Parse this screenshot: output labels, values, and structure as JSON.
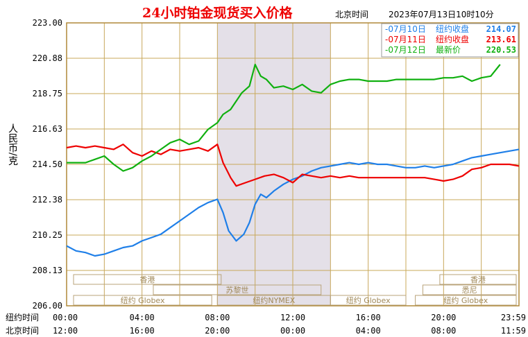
{
  "chart_data": {
    "type": "line",
    "title": "24小时铂金现货买入价格",
    "subtitle_label": "北京时间",
    "timestamp": "2023年07月13日10时10分",
    "ylabel": "人民币/克",
    "ylim": [
      206.0,
      223.0
    ],
    "y_ticks": [
      "223.00",
      "220.88",
      "218.75",
      "216.63",
      "214.50",
      "212.38",
      "210.25",
      "208.13",
      "206.00"
    ],
    "x_tick_labels_ny": [
      "00:00",
      "04:00",
      "08:00",
      "12:00",
      "16:00",
      "20:00",
      "23:59"
    ],
    "x_tick_labels_bj": [
      "12:00",
      "16:00",
      "20:00",
      "00:00",
      "04:00",
      "08:00",
      "11:59"
    ],
    "x_row_label_ny": "纽约时间",
    "x_row_label_bj": "北京时间",
    "xlim_hours": [
      0,
      24
    ],
    "grid": true,
    "legend_position": "top-right",
    "legend": [
      {
        "date": "07月10日",
        "label": "纽约收盘",
        "value": "214.07",
        "color": "#1f7fe8"
      },
      {
        "date": "07月11日",
        "label": "纽约收盘",
        "value": "213.61",
        "color": "#ee0000"
      },
      {
        "date": "07月12日",
        "label": "最新价",
        "value": "220.53",
        "color": "#10b010"
      }
    ],
    "shaded_session": {
      "label": "纽约NYMEX",
      "x_start_hours": 8,
      "x_end_hours": 14
    },
    "sessions": [
      {
        "label": "香港",
        "x_start_hours": 0,
        "x_end_hours": 8.2,
        "row": 1
      },
      {
        "label": "苏黎世",
        "x_start_hours": 4.6,
        "x_end_hours": 13.5,
        "row": 2
      },
      {
        "label": "纽约 Globex",
        "x_start_hours": 0,
        "x_end_hours": 7.7,
        "row": 3
      },
      {
        "label": "纽约NYMEX",
        "x_start_hours": 8,
        "x_end_hours": 14,
        "row": 3
      },
      {
        "label": "纽约 Globex",
        "x_start_hours": 14,
        "x_end_hours": 18,
        "row": 3
      },
      {
        "label": "香港",
        "x_start_hours": 19.8,
        "x_end_hours": 24,
        "row": 1
      },
      {
        "label": "悉尼",
        "x_start_hours": 18.9,
        "x_end_hours": 24,
        "row": 2
      },
      {
        "label": "纽约 Globex",
        "x_start_hours": 18.5,
        "x_end_hours": 24,
        "row": 3
      }
    ],
    "series": [
      {
        "name": "07月10日",
        "color": "#1f7fe8",
        "points": [
          [
            0,
            209.6
          ],
          [
            0.5,
            209.3
          ],
          [
            1,
            209.2
          ],
          [
            1.5,
            209.0
          ],
          [
            2,
            209.1
          ],
          [
            2.5,
            209.3
          ],
          [
            3,
            209.5
          ],
          [
            3.5,
            209.6
          ],
          [
            4,
            209.9
          ],
          [
            4.5,
            210.1
          ],
          [
            5,
            210.3
          ],
          [
            5.5,
            210.7
          ],
          [
            6,
            211.1
          ],
          [
            6.5,
            211.5
          ],
          [
            7,
            211.9
          ],
          [
            7.5,
            212.2
          ],
          [
            8,
            212.4
          ],
          [
            8.3,
            211.6
          ],
          [
            8.6,
            210.5
          ],
          [
            9,
            209.9
          ],
          [
            9.4,
            210.3
          ],
          [
            9.7,
            211.0
          ],
          [
            10,
            212.1
          ],
          [
            10.3,
            212.7
          ],
          [
            10.6,
            212.5
          ],
          [
            11,
            212.9
          ],
          [
            11.5,
            213.3
          ],
          [
            12,
            213.6
          ],
          [
            12.5,
            213.8
          ],
          [
            13,
            214.1
          ],
          [
            13.5,
            214.3
          ],
          [
            14,
            214.4
          ],
          [
            14.5,
            214.5
          ],
          [
            15,
            214.6
          ],
          [
            15.5,
            214.5
          ],
          [
            16,
            214.6
          ],
          [
            16.5,
            214.5
          ],
          [
            17,
            214.5
          ],
          [
            17.5,
            214.4
          ],
          [
            18,
            214.3
          ],
          [
            18.5,
            214.3
          ],
          [
            19,
            214.4
          ],
          [
            19.5,
            214.3
          ],
          [
            20,
            214.4
          ],
          [
            20.5,
            214.5
          ],
          [
            21,
            214.7
          ],
          [
            21.5,
            214.9
          ],
          [
            22,
            215.0
          ],
          [
            22.5,
            215.1
          ],
          [
            23,
            215.2
          ],
          [
            23.5,
            215.3
          ],
          [
            24,
            215.4
          ]
        ]
      },
      {
        "name": "07月11日",
        "color": "#ee0000",
        "points": [
          [
            0,
            215.5
          ],
          [
            0.5,
            215.6
          ],
          [
            1,
            215.5
          ],
          [
            1.5,
            215.6
          ],
          [
            2,
            215.5
          ],
          [
            2.5,
            215.4
          ],
          [
            3,
            215.7
          ],
          [
            3.5,
            215.2
          ],
          [
            4,
            215.0
          ],
          [
            4.5,
            215.3
          ],
          [
            5,
            215.1
          ],
          [
            5.5,
            215.4
          ],
          [
            6,
            215.3
          ],
          [
            6.5,
            215.4
          ],
          [
            7,
            215.5
          ],
          [
            7.5,
            215.3
          ],
          [
            8,
            215.7
          ],
          [
            8.3,
            214.6
          ],
          [
            8.7,
            213.7
          ],
          [
            9,
            213.2
          ],
          [
            9.5,
            213.4
          ],
          [
            10,
            213.6
          ],
          [
            10.5,
            213.8
          ],
          [
            11,
            213.9
          ],
          [
            11.5,
            213.7
          ],
          [
            12,
            213.4
          ],
          [
            12.5,
            213.9
          ],
          [
            13,
            213.8
          ],
          [
            13.5,
            213.7
          ],
          [
            14,
            213.8
          ],
          [
            14.5,
            213.7
          ],
          [
            15,
            213.8
          ],
          [
            15.5,
            213.7
          ],
          [
            16,
            213.7
          ],
          [
            16.5,
            213.7
          ],
          [
            17,
            213.7
          ],
          [
            17.5,
            213.7
          ],
          [
            18,
            213.7
          ],
          [
            18.5,
            213.7
          ],
          [
            19,
            213.7
          ],
          [
            19.5,
            213.6
          ],
          [
            20,
            213.5
          ],
          [
            20.5,
            213.6
          ],
          [
            21,
            213.8
          ],
          [
            21.5,
            214.2
          ],
          [
            22,
            214.3
          ],
          [
            22.5,
            214.5
          ],
          [
            23,
            214.5
          ],
          [
            23.5,
            214.5
          ],
          [
            24,
            214.4
          ]
        ]
      },
      {
        "name": "07月12日",
        "color": "#10b010",
        "points": [
          [
            0,
            214.6
          ],
          [
            0.5,
            214.6
          ],
          [
            1,
            214.6
          ],
          [
            1.5,
            214.8
          ],
          [
            2,
            215.0
          ],
          [
            2.5,
            214.5
          ],
          [
            3,
            214.1
          ],
          [
            3.5,
            214.3
          ],
          [
            4,
            214.7
          ],
          [
            4.5,
            215.0
          ],
          [
            5,
            215.4
          ],
          [
            5.5,
            215.8
          ],
          [
            6,
            216.0
          ],
          [
            6.5,
            215.7
          ],
          [
            7,
            215.9
          ],
          [
            7.5,
            216.6
          ],
          [
            8,
            217.0
          ],
          [
            8.3,
            217.5
          ],
          [
            8.7,
            217.8
          ],
          [
            9,
            218.3
          ],
          [
            9.3,
            218.8
          ],
          [
            9.7,
            219.2
          ],
          [
            10,
            220.5
          ],
          [
            10.3,
            219.8
          ],
          [
            10.6,
            219.6
          ],
          [
            11,
            219.1
          ],
          [
            11.5,
            219.2
          ],
          [
            12,
            219.0
          ],
          [
            12.5,
            219.3
          ],
          [
            13,
            218.9
          ],
          [
            13.5,
            218.8
          ],
          [
            14,
            219.3
          ],
          [
            14.5,
            219.5
          ],
          [
            15,
            219.6
          ],
          [
            15.5,
            219.6
          ],
          [
            16,
            219.5
          ],
          [
            16.5,
            219.5
          ],
          [
            17,
            219.5
          ],
          [
            17.5,
            219.6
          ],
          [
            18,
            219.6
          ],
          [
            18.5,
            219.6
          ],
          [
            19,
            219.6
          ],
          [
            19.5,
            219.6
          ],
          [
            20,
            219.7
          ],
          [
            20.5,
            219.7
          ],
          [
            21,
            219.8
          ],
          [
            21.5,
            219.5
          ],
          [
            22,
            219.7
          ],
          [
            22.5,
            219.8
          ],
          [
            23,
            220.5
          ]
        ]
      }
    ]
  }
}
